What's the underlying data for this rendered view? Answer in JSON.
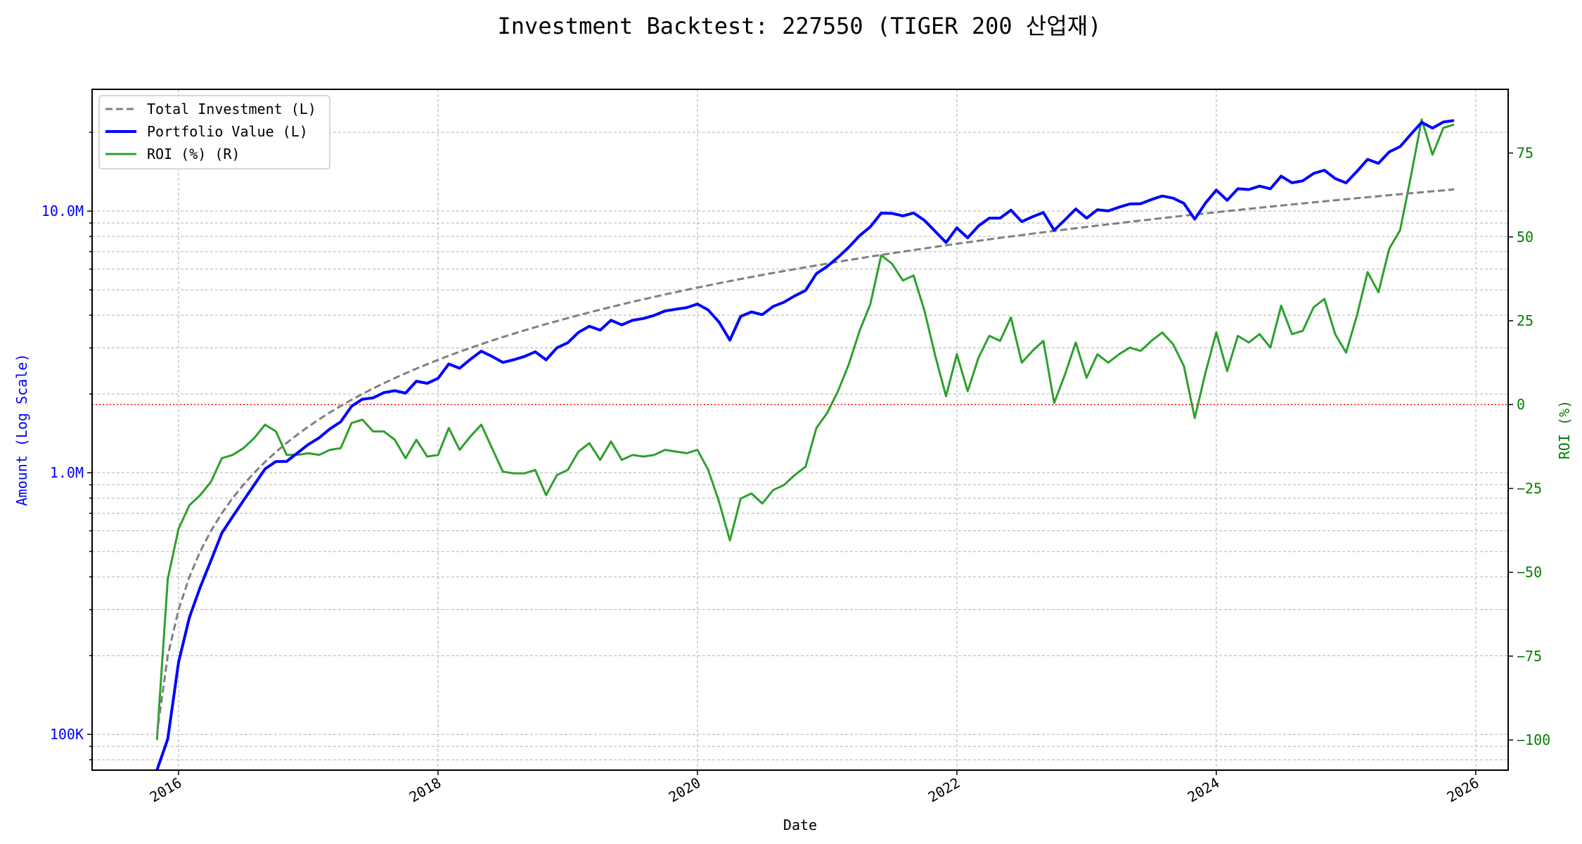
{
  "chart_data": {
    "type": "line",
    "title": "Investment Backtest: 227550 (TIGER 200 산업재)",
    "xlabel": "Date",
    "ylabel_left": "Amount (Log Scale)",
    "ylabel_right": "ROI (%)",
    "x_ticks": [
      "2016",
      "2018",
      "2020",
      "2022",
      "2024",
      "2026"
    ],
    "y_left_scale": "log",
    "y_left_ticks": [
      {
        "value": 100000,
        "label": "100K"
      },
      {
        "value": 1000000,
        "label": "1.0M"
      },
      {
        "value": 10000000,
        "label": "10.0M"
      }
    ],
    "y_left_range": [
      73000,
      29200000
    ],
    "y_right_ticks": [
      {
        "value": -100,
        "label": "−100"
      },
      {
        "value": -75,
        "label": "−75"
      },
      {
        "value": -50,
        "label": "−50"
      },
      {
        "value": -25,
        "label": "−25"
      },
      {
        "value": 0,
        "label": "0"
      },
      {
        "value": 25,
        "label": "25"
      },
      {
        "value": 50,
        "label": "50"
      },
      {
        "value": 75,
        "label": "75"
      }
    ],
    "y_right_range": [
      -109,
      94
    ],
    "x_range": [
      "2015-05",
      "2026-04"
    ],
    "grid": true,
    "legend_position": "top-left",
    "reference_line": {
      "axis": "right",
      "value": 0,
      "color": "#ff0000",
      "style": "dotted"
    },
    "colors": {
      "total_investment": "#808080",
      "portfolio_value": "#0000ff",
      "roi": "#2ca02c",
      "left_axis": "#0000ff",
      "right_axis": "#008000"
    },
    "dates": [
      "2015-11",
      "2015-12",
      "2016-01",
      "2016-02",
      "2016-03",
      "2016-04",
      "2016-05",
      "2016-06",
      "2016-07",
      "2016-08",
      "2016-09",
      "2016-10",
      "2016-11",
      "2016-12",
      "2017-01",
      "2017-02",
      "2017-03",
      "2017-04",
      "2017-05",
      "2017-06",
      "2017-07",
      "2017-08",
      "2017-09",
      "2017-10",
      "2017-11",
      "2017-12",
      "2018-01",
      "2018-02",
      "2018-03",
      "2018-04",
      "2018-05",
      "2018-06",
      "2018-07",
      "2018-08",
      "2018-09",
      "2018-10",
      "2018-11",
      "2018-12",
      "2019-01",
      "2019-02",
      "2019-03",
      "2019-04",
      "2019-05",
      "2019-06",
      "2019-07",
      "2019-08",
      "2019-09",
      "2019-10",
      "2019-11",
      "2019-12",
      "2020-01",
      "2020-02",
      "2020-03",
      "2020-04",
      "2020-05",
      "2020-06",
      "2020-07",
      "2020-08",
      "2020-09",
      "2020-10",
      "2020-11",
      "2020-12",
      "2021-01",
      "2021-02",
      "2021-03",
      "2021-04",
      "2021-05",
      "2021-06",
      "2021-07",
      "2021-08",
      "2021-09",
      "2021-10",
      "2021-11",
      "2021-12",
      "2022-01",
      "2022-02",
      "2022-03",
      "2022-04",
      "2022-05",
      "2022-06",
      "2022-07",
      "2022-08",
      "2022-09",
      "2022-10",
      "2022-11",
      "2022-12",
      "2023-01",
      "2023-02",
      "2023-03",
      "2023-04",
      "2023-05",
      "2023-06",
      "2023-07",
      "2023-08",
      "2023-09",
      "2023-10",
      "2023-11",
      "2023-12",
      "2024-01",
      "2024-02",
      "2024-03",
      "2024-04",
      "2024-05",
      "2024-06",
      "2024-07",
      "2024-08",
      "2024-09",
      "2024-10",
      "2024-11",
      "2024-12",
      "2025-01",
      "2025-02",
      "2025-03",
      "2025-04",
      "2025-05",
      "2025-06",
      "2025-07",
      "2025-08",
      "2025-09",
      "2025-10",
      "2025-11"
    ],
    "series": [
      {
        "name": "Total Investment (L)",
        "axis": "left",
        "style": "dashed",
        "values": [
          100000,
          200000,
          300000,
          400000,
          500000,
          600000,
          700000,
          800000,
          900000,
          1000000,
          1100000,
          1200000,
          1300000,
          1400000,
          1500000,
          1600000,
          1700000,
          1800000,
          1900000,
          2000000,
          2100000,
          2200000,
          2300000,
          2400000,
          2500000,
          2600000,
          2700000,
          2800000,
          2900000,
          3000000,
          3100000,
          3200000,
          3300000,
          3400000,
          3500000,
          3600000,
          3700000,
          3800000,
          3900000,
          4000000,
          4100000,
          4200000,
          4300000,
          4400000,
          4500000,
          4600000,
          4700000,
          4800000,
          4900000,
          5000000,
          5100000,
          5200000,
          5300000,
          5400000,
          5500000,
          5600000,
          5700000,
          5800000,
          5900000,
          6000000,
          6100000,
          6200000,
          6300000,
          6400000,
          6500000,
          6600000,
          6700000,
          6800000,
          6900000,
          7000000,
          7100000,
          7200000,
          7300000,
          7400000,
          7500000,
          7600000,
          7700000,
          7800000,
          7900000,
          8000000,
          8100000,
          8200000,
          8300000,
          8400000,
          8500000,
          8600000,
          8700000,
          8800000,
          8900000,
          9000000,
          9100000,
          9200000,
          9300000,
          9400000,
          9500000,
          9600000,
          9700000,
          9800000,
          9900000,
          10000000,
          10100000,
          10200000,
          10300000,
          10400000,
          10500000,
          10600000,
          10700000,
          10800000,
          10900000,
          11000000,
          11100000,
          11200000,
          11300000,
          11400000,
          11500000,
          11600000,
          11700000,
          11800000,
          11900000,
          12000000,
          12100000
        ]
      },
      {
        "name": "Portfolio Value (L)",
        "axis": "left",
        "style": "solid",
        "values": [
          0,
          96000,
          189000,
          280000,
          365000,
          462000,
          588000,
          680000,
          783000,
          900000,
          1034000,
          1104000,
          1105000,
          1190000,
          1282500,
          1360000,
          1470500,
          1566000,
          1795500,
          1910000,
          1932000,
          2024000,
          2058500,
          2016000,
          2237500,
          2197000,
          2295000,
          2604000,
          2508500,
          2715000,
          2914000,
          2784000,
          2640000,
          2703000,
          2782500,
          2898000,
          2701000,
          3002000,
          3139500,
          3440000,
          3628500,
          3507000,
          3827000,
          3674000,
          3825000,
          3887000,
          3995000,
          4152000,
          4214000,
          4275000,
          4411500,
          4186000,
          3763000,
          3213000,
          3960000,
          4116000,
          4018500,
          4321000,
          4484000,
          4740000,
          4971500,
          5766000,
          6142500,
          6656000,
          7280000,
          8052000,
          8710000,
          9826000,
          9798000,
          9590000,
          9833500,
          9216000,
          8358500,
          7585000,
          8625000,
          7904000,
          8778000,
          9399000,
          9401000,
          10080000,
          9112500,
          9512000,
          9877000,
          8442000,
          9265000,
          10191000,
          9396000,
          10120000,
          10012500,
          10350000,
          10647000,
          10672000,
          11067000,
          11421000,
          11210000,
          10704000,
          9312000,
          10731000,
          12028500,
          11000000,
          12170500,
          12087000,
          12463000,
          12168000,
          13597500,
          12826000,
          13054000,
          13932000,
          14333500,
          13310000,
          12820500,
          14168000,
          15763500,
          15219000,
          16847500,
          17632000,
          19656000,
          21830000,
          20765500,
          21900000,
          22203500
        ]
      },
      {
        "name": "ROI (%) (R)",
        "axis": "right",
        "style": "solid",
        "values": [
          -100,
          -52,
          -37,
          -30,
          -27,
          -23,
          -16,
          -15,
          -13,
          -10,
          -6,
          -8,
          -15,
          -15,
          -14.5,
          -15,
          -13.5,
          -13,
          -5.5,
          -4.5,
          -8,
          -8,
          -10.5,
          -16,
          -10.5,
          -15.5,
          -15,
          -7,
          -13.5,
          -9.5,
          -6,
          -13,
          -20,
          -20.5,
          -20.5,
          -19.5,
          -27,
          -21,
          -19.5,
          -14,
          -11.5,
          -16.5,
          -11,
          -16.5,
          -15,
          -15.5,
          -15,
          -13.5,
          -14,
          -14.5,
          -13.5,
          -19.5,
          -29,
          -40.5,
          -28,
          -26.5,
          -29.5,
          -25.5,
          -24,
          -21,
          -18.5,
          -7,
          -2.5,
          4,
          12,
          22,
          30,
          44.5,
          42,
          37,
          38.5,
          28,
          14.5,
          2.5,
          15,
          4,
          14,
          20.5,
          19,
          26,
          12.5,
          16,
          19,
          0.5,
          9,
          18.5,
          8,
          15,
          12.5,
          15,
          17,
          16,
          19,
          21.5,
          18,
          11.5,
          -4,
          9.5,
          21.5,
          10,
          20.5,
          18.5,
          21,
          17,
          29.5,
          21,
          22,
          29,
          31.5,
          21,
          15.5,
          26.5,
          39.5,
          33.5,
          46.5,
          52,
          68,
          85,
          74.5,
          82.5,
          83.5
        ]
      }
    ]
  }
}
